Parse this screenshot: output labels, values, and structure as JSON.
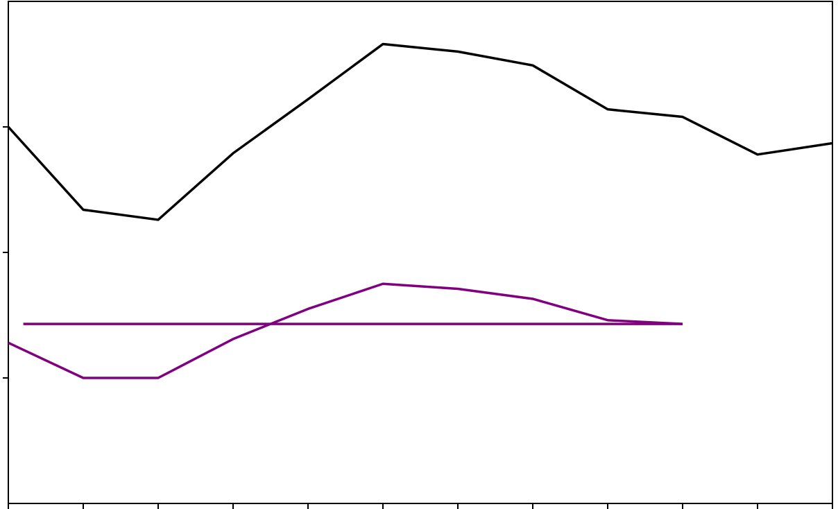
{
  "chart_data": {
    "type": "line",
    "xlim": [
      0,
      11
    ],
    "ylim": [
      0,
      4
    ],
    "xticks": [
      0,
      1,
      2,
      3,
      4,
      5,
      6,
      7,
      8,
      9,
      10,
      11
    ],
    "yticks": [
      1,
      2,
      3
    ],
    "series": [
      {
        "color": "#000000",
        "x": [
          0,
          1,
          2,
          3,
          4,
          5,
          6,
          7,
          8,
          9,
          10,
          11
        ],
        "values": [
          3.0,
          2.34,
          2.26,
          2.79,
          3.22,
          3.66,
          3.6,
          3.49,
          3.14,
          3.08,
          2.78,
          2.87
        ]
      },
      {
        "color": "#800080",
        "x": [
          0,
          1,
          2,
          3,
          4,
          5,
          6,
          7,
          8,
          9
        ],
        "values": [
          1.28,
          1.0,
          1.0,
          1.31,
          1.55,
          1.75,
          1.71,
          1.63,
          1.46,
          1.43
        ]
      },
      {
        "color": "#800080",
        "x": [
          0.2,
          9
        ],
        "values": [
          1.43,
          1.43
        ]
      }
    ]
  }
}
